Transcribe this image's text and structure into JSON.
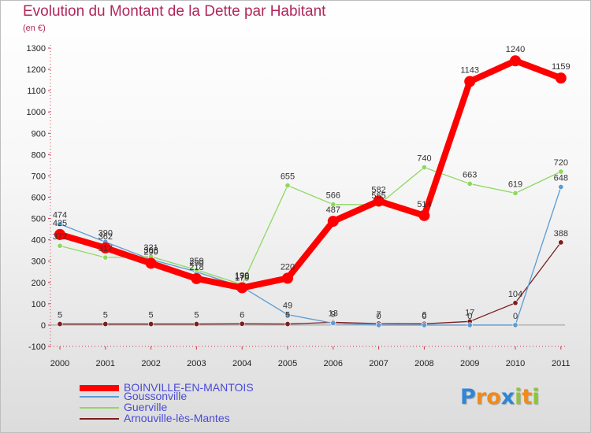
{
  "title": "Evolution du Montant de la Dette par Habitant",
  "unit": "(en €)",
  "logo": {
    "letters": [
      {
        "ch": "P",
        "color": "#2f86d6"
      },
      {
        "ch": "r",
        "color": "#f08a1c"
      },
      {
        "ch": "o",
        "color": "#f08a1c"
      },
      {
        "ch": "x",
        "color": "#2f86d6"
      },
      {
        "ch": "i",
        "color": "#8cc43c"
      },
      {
        "ch": "t",
        "color": "#f08a1c"
      },
      {
        "ch": "i",
        "color": "#8cc43c"
      }
    ]
  },
  "chart_data": {
    "type": "line",
    "title": "Evolution du Montant de la Dette par Habitant",
    "ylabel": "(en €)",
    "x": [
      "2000",
      "2001",
      "2002",
      "2003",
      "2004",
      "2005",
      "2006",
      "2007",
      "2008",
      "2009",
      "2010",
      "2011"
    ],
    "ylim": [
      -100,
      1300
    ],
    "yticks": [
      -100,
      0,
      100,
      200,
      300,
      400,
      500,
      600,
      700,
      800,
      900,
      1000,
      1100,
      1200,
      1300
    ],
    "grid": false,
    "legend_position": "bottom-left",
    "series": [
      {
        "name": "BOINVILLE-EN-MANTOIS",
        "color": "#ff0000",
        "width": 8,
        "values": [
          425,
          362,
          290,
          218,
          175,
          220,
          487,
          582,
          514,
          1143,
          1240,
          1159
        ]
      },
      {
        "name": "Goussonville",
        "color": "#5b9bd5",
        "width": 1.3,
        "values": [
          474,
          390,
          308,
          250,
          179,
          49,
          9,
          0,
          0,
          0,
          0,
          648
        ]
      },
      {
        "name": "Guerville",
        "color": "#8fd860",
        "width": 1.3,
        "values": [
          372,
          317,
          321,
          259,
          190,
          655,
          566,
          565,
          740,
          663,
          619,
          720
        ]
      },
      {
        "name": "Arnouville-lès-Mantes",
        "color": "#7a1f1f",
        "width": 1.3,
        "values": [
          5,
          5,
          5,
          5,
          6,
          5,
          13,
          7,
          6,
          17,
          104,
          388
        ]
      }
    ]
  }
}
